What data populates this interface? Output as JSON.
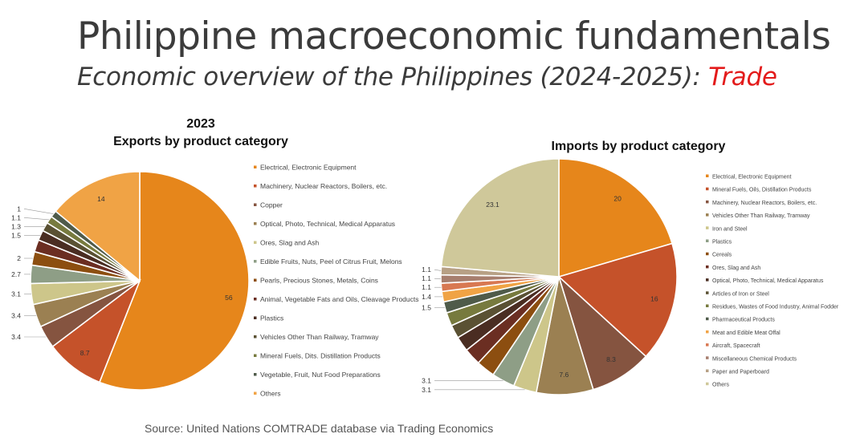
{
  "header": {
    "title": "Philippine macroeconomic fundamentals",
    "subtitle_prefix": "Economic overview of the Philippines (2024-2025): ",
    "subtitle_accent": "Trade",
    "accent_color": "#e31b1b"
  },
  "source": "Source: United Nations COMTRADE database via Trading Economics",
  "chart_data": [
    {
      "type": "pie",
      "title": "2023",
      "subtitle": "Exports by product category",
      "legend_position": "right",
      "slices": [
        {
          "label": "Electrical, Electronic Equipment",
          "value": 56,
          "display": "56",
          "color": "#e6861b"
        },
        {
          "label": "Machinery, Nuclear Reactors, Boilers, etc.",
          "value": 8.7,
          "display": "8.7",
          "color": "#c5522a"
        },
        {
          "label": "Copper",
          "value": 3.4,
          "display": "3.4",
          "color": "#855440"
        },
        {
          "label": "Optical, Photo, Technical, Medical Apparatus",
          "value": 3.4,
          "display": "3.4",
          "color": "#9b8052"
        },
        {
          "label": "Ores, Slag and Ash",
          "value": 3.1,
          "display": "3.1",
          "color": "#cdc68a"
        },
        {
          "label": "Edible Fruits, Nuts, Peel of Citrus Fruit, Melons",
          "value": 2.7,
          "display": "2.7",
          "color": "#8e9e86"
        },
        {
          "label": "Pearls, Precious Stones, Metals, Coins",
          "value": 2,
          "display": "2",
          "color": "#8c4e10"
        },
        {
          "label": "Animal, Vegetable Fats and Oils, Cleavage Products",
          "value": 1.8,
          "display": "",
          "color": "#6b2e22"
        },
        {
          "label": "Plastics",
          "value": 1.5,
          "display": "1.5",
          "color": "#4a2d22"
        },
        {
          "label": "Vehicles Other Than Railway, Tramway",
          "value": 1.3,
          "display": "1.3",
          "color": "#5a5133"
        },
        {
          "label": "Mineral Fuels, Dits. Distillation Products",
          "value": 1.1,
          "display": "1.1",
          "color": "#777a3e"
        },
        {
          "label": "Vegetable, Fruit, Nut Food Preparations",
          "value": 1,
          "display": "1",
          "color": "#4f5b4a"
        },
        {
          "label": "Others",
          "value": 14,
          "display": "14",
          "color": "#f0a345"
        }
      ]
    },
    {
      "type": "pie",
      "title": "Imports by product category",
      "legend_position": "right",
      "slices": [
        {
          "label": "Electrical, Electronic Equipment",
          "value": 20,
          "display": "20",
          "color": "#e6861b"
        },
        {
          "label": "Mineral Fuels, Oils, Distillation Products",
          "value": 16,
          "display": "16",
          "color": "#c5522a"
        },
        {
          "label": "Machinery, Nuclear Reactors, Boilers, etc.",
          "value": 8.3,
          "display": "8.3",
          "color": "#855440"
        },
        {
          "label": "Vehicles Other Than Railway, Tramway",
          "value": 7.6,
          "display": "7.6",
          "color": "#9b8052"
        },
        {
          "label": "Iron and Steel",
          "value": 3.1,
          "display": "3.1",
          "color": "#cdc68a"
        },
        {
          "label": "Plastics",
          "value": 3.1,
          "display": "3.1",
          "color": "#8e9e86"
        },
        {
          "label": "Cereals",
          "value": 2.5,
          "display": "",
          "color": "#8c4e10"
        },
        {
          "label": "Ores, Slag and Ash",
          "value": 2.3,
          "display": "",
          "color": "#6b2e22"
        },
        {
          "label": "Optical, Photo, Technical, Medical Apparatus",
          "value": 2.0,
          "display": "",
          "color": "#4a2d22"
        },
        {
          "label": "Articles of Iron or Steel",
          "value": 1.8,
          "display": "",
          "color": "#5a5133"
        },
        {
          "label": "Residues, Wastes of Food Industry, Animal Fodder",
          "value": 1.8,
          "display": "",
          "color": "#777a3e"
        },
        {
          "label": "Pharmaceutical Products",
          "value": 1.5,
          "display": "1.5",
          "color": "#4f5b4a"
        },
        {
          "label": "Meat and Edible Meat Offal",
          "value": 1.4,
          "display": "1.4",
          "color": "#f0a345"
        },
        {
          "label": "Aircraft, Spacecraft",
          "value": 1.1,
          "display": "1.1",
          "color": "#d87852"
        },
        {
          "label": "Miscellaneous Chemical Products",
          "value": 1.1,
          "display": "1.1",
          "color": "#a77e6e"
        },
        {
          "label": "Paper and Paperboard",
          "value": 1.1,
          "display": "1.1",
          "color": "#b7a085"
        },
        {
          "label": "Others",
          "value": 23.1,
          "display": "23.1",
          "color": "#cfc89a"
        }
      ]
    }
  ]
}
